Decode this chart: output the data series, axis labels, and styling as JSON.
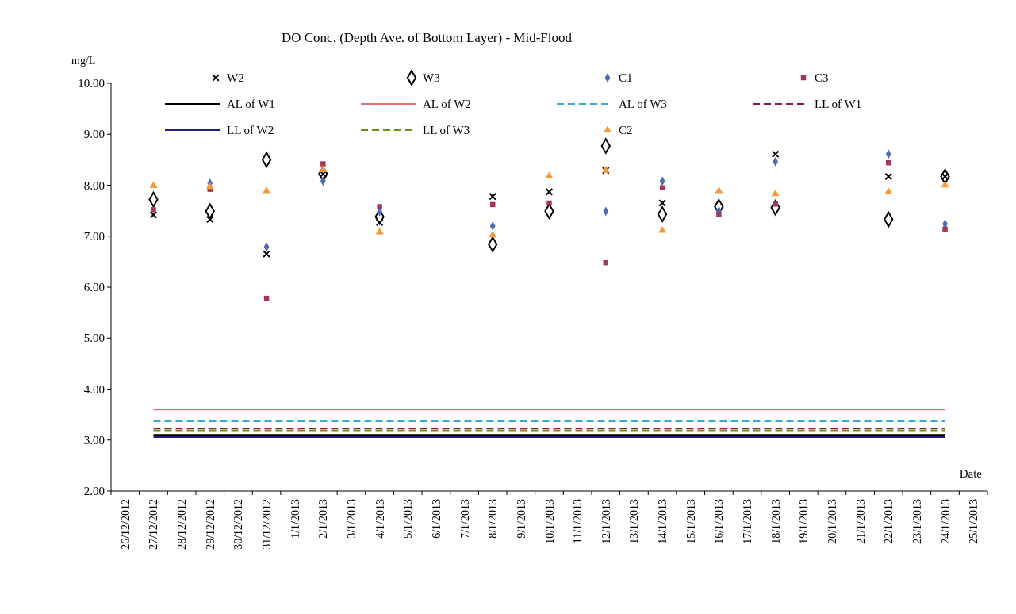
{
  "chart_data": {
    "type": "scatter",
    "title": "DO Conc. (Depth Ave. of Bottom Layer) - Mid-Flood",
    "ylabel": "mg/L",
    "xlabel": "Date",
    "categories": [
      "26/12/2012",
      "27/12/2012",
      "28/12/2012",
      "29/12/2012",
      "30/12/2012",
      "31/12/2012",
      "1/1/2013",
      "2/1/2013",
      "3/1/2013",
      "4/1/2013",
      "5/1/2013",
      "6/1/2013",
      "7/1/2013",
      "8/1/2013",
      "9/1/2013",
      "10/1/2013",
      "11/1/2013",
      "12/1/2013",
      "13/1/2013",
      "14/1/2013",
      "15/1/2013",
      "16/1/2013",
      "17/1/2013",
      "18/1/2013",
      "19/1/2013",
      "20/1/2013",
      "21/1/2013",
      "22/1/2013",
      "23/1/2013",
      "24/1/2013",
      "25/1/2013"
    ],
    "ylim": [
      2,
      10
    ],
    "yticks": [
      {
        "value": 2,
        "label": "2.00"
      },
      {
        "value": 3,
        "label": "3.00"
      },
      {
        "value": 4,
        "label": "4.00"
      },
      {
        "value": 5,
        "label": "5.00"
      },
      {
        "value": 6,
        "label": "6.00"
      },
      {
        "value": 7,
        "label": "7.00"
      },
      {
        "value": 8,
        "label": "8.00"
      },
      {
        "value": 9,
        "label": "9.00"
      },
      {
        "value": 10,
        "label": "10.00"
      }
    ],
    "grid": false,
    "legend": "top",
    "series": [
      {
        "name": "W2",
        "marker": "cross",
        "color": "#000000",
        "values": [
          null,
          7.42,
          null,
          7.33,
          null,
          6.65,
          null,
          8.22,
          null,
          7.27,
          null,
          null,
          null,
          7.78,
          null,
          7.87,
          null,
          8.29,
          null,
          7.65,
          null,
          null,
          null,
          8.61,
          null,
          null,
          null,
          8.17,
          null,
          8.17,
          null
        ]
      },
      {
        "name": "W3",
        "marker": "diamond",
        "color": "#000000",
        "values": [
          null,
          7.72,
          null,
          7.49,
          null,
          8.5,
          null,
          8.22,
          null,
          7.38,
          null,
          null,
          null,
          6.84,
          null,
          7.49,
          null,
          8.77,
          null,
          7.43,
          null,
          7.58,
          null,
          7.56,
          null,
          null,
          null,
          7.33,
          null,
          8.17,
          null
        ]
      },
      {
        "name": "C1",
        "marker": "diamond",
        "color": "#4f6bb5",
        "values": [
          null,
          null,
          null,
          8.04,
          null,
          6.79,
          null,
          8.08,
          null,
          7.48,
          null,
          null,
          null,
          7.2,
          null,
          null,
          null,
          7.49,
          null,
          8.08,
          null,
          7.5,
          null,
          8.46,
          null,
          null,
          null,
          8.61,
          null,
          7.24,
          null
        ]
      },
      {
        "name": "C3",
        "marker": "square",
        "color": "#a3375a",
        "values": [
          null,
          7.52,
          null,
          7.92,
          null,
          5.78,
          null,
          8.42,
          null,
          7.58,
          null,
          null,
          null,
          7.62,
          null,
          7.65,
          null,
          6.48,
          null,
          7.95,
          null,
          7.43,
          null,
          7.63,
          null,
          null,
          null,
          8.44,
          null,
          7.14,
          null
        ]
      },
      {
        "name": "AL of W1",
        "type": "line",
        "marker": "none",
        "line_style": "solid",
        "color": "#000000",
        "values": [
          null,
          3.1,
          3.1,
          3.1,
          3.1,
          3.1,
          3.1,
          3.1,
          3.1,
          3.1,
          3.1,
          3.1,
          3.1,
          3.1,
          3.1,
          3.1,
          3.1,
          3.1,
          3.1,
          3.1,
          3.1,
          3.1,
          3.1,
          3.1,
          3.1,
          3.1,
          3.1,
          3.1,
          3.1,
          3.1,
          null
        ]
      },
      {
        "name": "AL of W2",
        "type": "line",
        "marker": "none",
        "line_style": "solid",
        "color": "#e8707a",
        "values": [
          null,
          3.6,
          3.6,
          3.6,
          3.6,
          3.6,
          3.6,
          3.6,
          3.6,
          3.6,
          3.6,
          3.6,
          3.6,
          3.6,
          3.6,
          3.6,
          3.6,
          3.6,
          3.6,
          3.6,
          3.6,
          3.6,
          3.6,
          3.6,
          3.6,
          3.6,
          3.6,
          3.6,
          3.6,
          3.6,
          null
        ]
      },
      {
        "name": "AL of W3",
        "type": "line",
        "marker": "none",
        "line_style": "dashed",
        "color": "#3aa8d8",
        "values": [
          null,
          3.37,
          3.37,
          3.37,
          3.37,
          3.37,
          3.37,
          3.37,
          3.37,
          3.37,
          3.37,
          3.37,
          3.37,
          3.37,
          3.37,
          3.37,
          3.37,
          3.37,
          3.37,
          3.37,
          3.37,
          3.37,
          3.37,
          3.37,
          3.37,
          3.37,
          3.37,
          3.37,
          3.37,
          3.37,
          null
        ]
      },
      {
        "name": "LL of W1",
        "type": "line",
        "marker": "none",
        "line_style": "dashed",
        "color": "#8b1a3a",
        "values": [
          null,
          3.23,
          3.23,
          3.23,
          3.23,
          3.23,
          3.23,
          3.23,
          3.23,
          3.23,
          3.23,
          3.23,
          3.23,
          3.23,
          3.23,
          3.23,
          3.23,
          3.23,
          3.23,
          3.23,
          3.23,
          3.23,
          3.23,
          3.23,
          3.23,
          3.23,
          3.23,
          3.23,
          3.23,
          3.23,
          null
        ]
      },
      {
        "name": "LL of W2",
        "type": "line",
        "marker": "none",
        "line_style": "solid",
        "color": "#1f1f7a",
        "values": [
          null,
          3.06,
          3.06,
          3.06,
          3.06,
          3.06,
          3.06,
          3.06,
          3.06,
          3.06,
          3.06,
          3.06,
          3.06,
          3.06,
          3.06,
          3.06,
          3.06,
          3.06,
          3.06,
          3.06,
          3.06,
          3.06,
          3.06,
          3.06,
          3.06,
          3.06,
          3.06,
          3.06,
          3.06,
          3.06,
          null
        ]
      },
      {
        "name": "LL of W3",
        "type": "line",
        "marker": "none",
        "line_style": "dashed",
        "color": "#6b8e23",
        "values": [
          null,
          3.19,
          3.19,
          3.19,
          3.19,
          3.19,
          3.19,
          3.19,
          3.19,
          3.19,
          3.19,
          3.19,
          3.19,
          3.19,
          3.19,
          3.19,
          3.19,
          3.19,
          3.19,
          3.19,
          3.19,
          3.19,
          3.19,
          3.19,
          3.19,
          3.19,
          3.19,
          3.19,
          3.19,
          3.19,
          null
        ]
      },
      {
        "name": "C2",
        "marker": "triangle",
        "color": "#f59a3c",
        "values": [
          null,
          7.99,
          null,
          7.97,
          null,
          7.89,
          null,
          8.3,
          null,
          7.08,
          null,
          null,
          null,
          7.02,
          null,
          8.18,
          null,
          8.29,
          null,
          7.11,
          null,
          7.89,
          null,
          7.83,
          null,
          null,
          null,
          7.87,
          null,
          8.0,
          null
        ]
      }
    ]
  }
}
